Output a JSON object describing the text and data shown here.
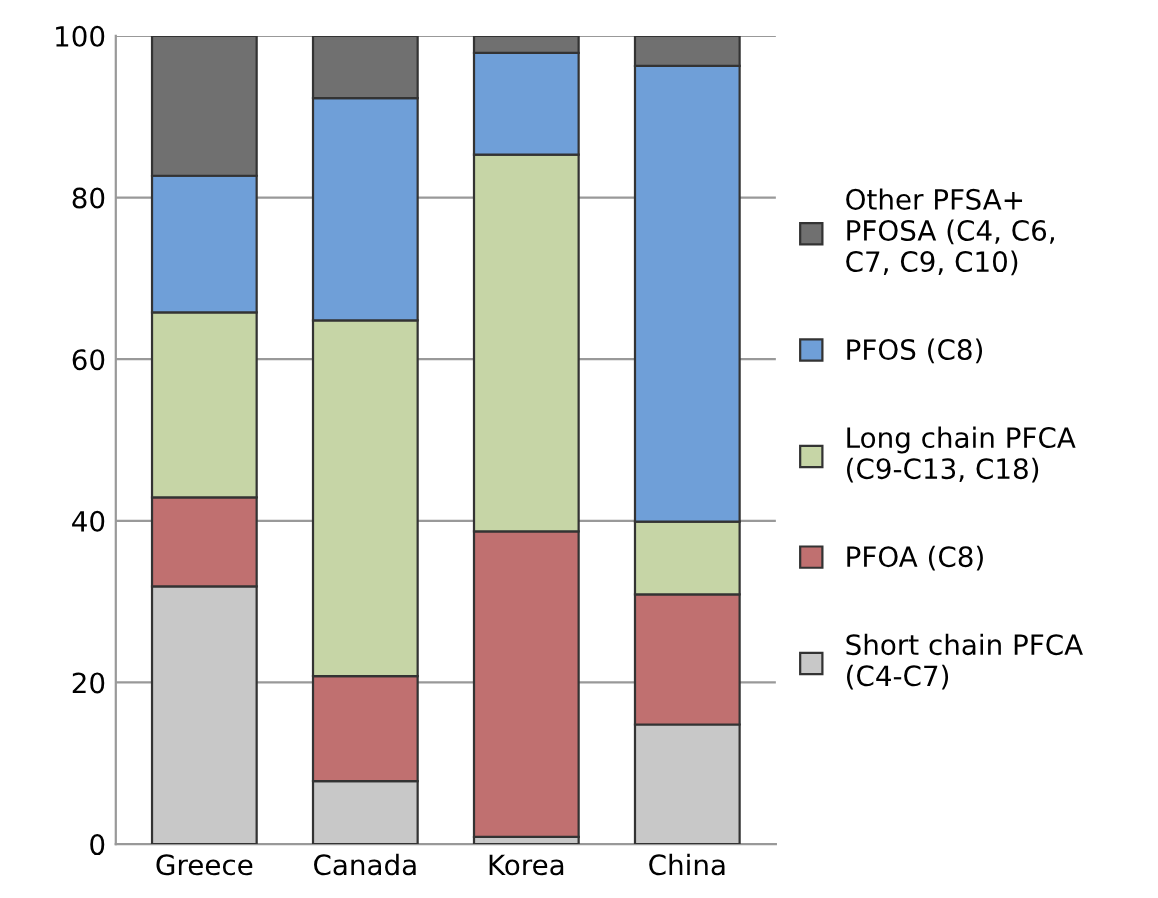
{
  "chart_data": {
    "type": "bar",
    "stacked": true,
    "categories": [
      "Greece",
      "Canada",
      "Korea",
      "China"
    ],
    "series": [
      {
        "name": "Short chain PFCA\n(C4-C7)",
        "color": "#c8c8c8",
        "values": [
          31.9,
          7.8,
          0.9,
          14.8
        ]
      },
      {
        "name": "PFOA (C8)",
        "color": "#c07070",
        "values": [
          11.0,
          13.0,
          37.8,
          16.1
        ]
      },
      {
        "name": "Long chain PFCA\n(C9-C13, C18)",
        "color": "#c6d5a6",
        "values": [
          22.9,
          44.0,
          46.6,
          9.0
        ]
      },
      {
        "name": "PFOS (C8)",
        "color": "#6f9fd8",
        "values": [
          16.9,
          27.5,
          12.6,
          56.4
        ]
      },
      {
        "name": "Other PFSA+\nPFOSA (C4, C6,\nC7, C9, C10)",
        "color": "#707070",
        "values": [
          17.3,
          7.7,
          2.1,
          3.7
        ]
      }
    ],
    "ylim": [
      0,
      100
    ],
    "yticks": [
      0,
      20,
      40,
      60,
      80,
      100
    ],
    "grid": "y",
    "legend": "right"
  }
}
